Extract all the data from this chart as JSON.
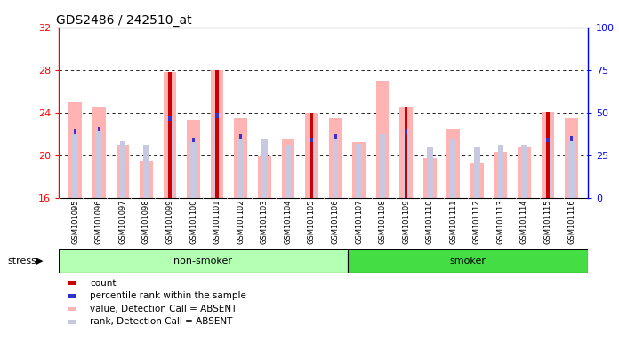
{
  "title": "GDS2486 / 242510_at",
  "samples": [
    "GSM101095",
    "GSM101096",
    "GSM101097",
    "GSM101098",
    "GSM101099",
    "GSM101100",
    "GSM101101",
    "GSM101102",
    "GSM101103",
    "GSM101104",
    "GSM101105",
    "GSM101106",
    "GSM101107",
    "GSM101108",
    "GSM101109",
    "GSM101110",
    "GSM101111",
    "GSM101112",
    "GSM101113",
    "GSM101114",
    "GSM101115",
    "GSM101116"
  ],
  "non_smoker_count": 12,
  "smoker_count": 10,
  "value_absent": [
    25.0,
    24.5,
    21.0,
    19.5,
    27.8,
    23.3,
    28.0,
    23.5,
    19.9,
    21.5,
    24.0,
    23.5,
    21.2,
    27.0,
    24.5,
    19.7,
    22.5,
    19.2,
    20.3,
    20.8,
    24.1,
    23.5
  ],
  "rank_absent": [
    22.0,
    22.2,
    21.3,
    21.0,
    23.2,
    21.2,
    23.5,
    21.5,
    21.5,
    21.0,
    21.2,
    21.5,
    21.1,
    22.0,
    22.0,
    20.7,
    21.5,
    20.7,
    21.0,
    21.0,
    21.2,
    21.3
  ],
  "count_value": [
    0,
    0,
    0,
    0,
    27.8,
    0,
    28.0,
    0,
    0,
    0,
    24.0,
    0,
    0,
    0,
    24.5,
    0,
    0,
    0,
    0,
    0,
    24.1,
    0
  ],
  "percentile_value": [
    22.0,
    22.2,
    0,
    0,
    23.2,
    21.2,
    23.5,
    21.5,
    0,
    0,
    21.2,
    21.5,
    0,
    0,
    22.0,
    0,
    0,
    0,
    0,
    0,
    21.2,
    21.3
  ],
  "ylim_left": [
    16,
    32
  ],
  "ylim_right": [
    0,
    100
  ],
  "yticks_left": [
    16,
    20,
    24,
    28,
    32
  ],
  "yticks_right": [
    0,
    25,
    50,
    75,
    100
  ],
  "color_count": "#cc0000",
  "color_percentile": "#3333cc",
  "color_value_absent": "#ffb3b3",
  "color_rank_absent": "#c8c8e0",
  "plot_bg": "#ffffff",
  "non_smoker_color": "#b3ffb3",
  "smoker_color": "#44dd44",
  "xtick_bg": "#d0d0d0"
}
